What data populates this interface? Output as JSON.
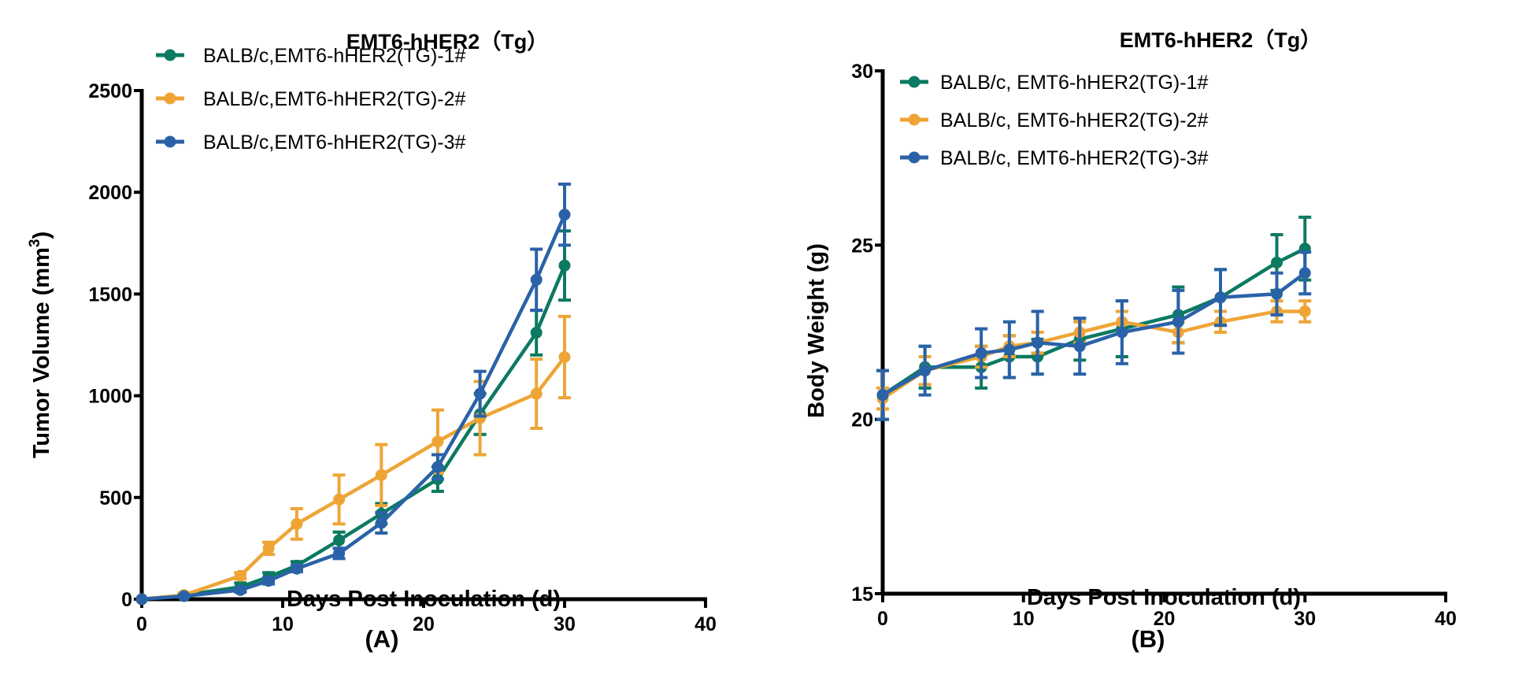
{
  "colors": {
    "series1": "#0b7a60",
    "series2": "#eea536",
    "series3": "#2a62a8",
    "axis": "#000000"
  },
  "chart_data": [
    {
      "type": "line",
      "panel_label": "(A)",
      "title": "EMT6-hHER2（Tg）",
      "xlabel": "Days Post Inoculation (d)",
      "ylabel": "Tumor Volume (mm",
      "ylabel_sup": "3",
      "ylabel_end": ")",
      "xlim": [
        0,
        40
      ],
      "ylim": [
        0,
        2500
      ],
      "xticks": [
        0,
        10,
        20,
        30,
        40
      ],
      "yticks": [
        0,
        500,
        1000,
        1500,
        2000,
        2500
      ],
      "grid": false,
      "legend_position": "top-left",
      "x": [
        0,
        3,
        7,
        9,
        11,
        14,
        17,
        21,
        24,
        28,
        30
      ],
      "series": [
        {
          "name": "BALB/c,EMT6-hHER2(TG)-1#",
          "values": [
            0,
            20,
            60,
            110,
            165,
            290,
            420,
            590,
            910,
            1310,
            1640
          ],
          "error": [
            0,
            10,
            20,
            20,
            20,
            40,
            50,
            60,
            100,
            110,
            170
          ]
        },
        {
          "name": "BALB/c,EMT6-hHER2(TG)-2#",
          "values": [
            0,
            20,
            115,
            250,
            370,
            490,
            610,
            775,
            890,
            1010,
            1190
          ],
          "error": [
            0,
            10,
            15,
            30,
            75,
            120,
            150,
            155,
            180,
            170,
            200
          ]
        },
        {
          "name": "BALB/c,EMT6-hHER2(TG)-3#",
          "values": [
            0,
            15,
            45,
            90,
            150,
            225,
            375,
            650,
            1010,
            1570,
            1890
          ],
          "error": [
            0,
            5,
            10,
            15,
            15,
            25,
            50,
            60,
            110,
            150,
            150
          ]
        }
      ]
    },
    {
      "type": "line",
      "panel_label": "(B)",
      "title": "EMT6-hHER2（Tg）",
      "xlabel": "Days Post Inoculation (d)",
      "ylabel": "Body Weight (g)",
      "xlim": [
        0,
        40
      ],
      "ylim": [
        15,
        30
      ],
      "xticks": [
        0,
        10,
        20,
        30,
        40
      ],
      "yticks": [
        15,
        20,
        25,
        30
      ],
      "grid": false,
      "legend_position": "top-left",
      "x": [
        0,
        3,
        7,
        9,
        11,
        14,
        17,
        21,
        24,
        28,
        30
      ],
      "series": [
        {
          "name": "BALB/c,  EMT6-hHER2(TG)-1#",
          "values": [
            20.7,
            21.5,
            21.5,
            21.8,
            21.8,
            22.3,
            22.6,
            23.0,
            23.5,
            24.5,
            24.9
          ],
          "error": [
            0.7,
            0.6,
            0.6,
            0.6,
            0.5,
            0.6,
            0.8,
            0.8,
            0.8,
            0.8,
            0.9
          ]
        },
        {
          "name": "BALB/c,  EMT6-hHER2(TG)-2#",
          "values": [
            20.6,
            21.4,
            21.8,
            22.1,
            22.2,
            22.5,
            22.8,
            22.5,
            22.8,
            23.1,
            23.1
          ],
          "error": [
            0.3,
            0.4,
            0.3,
            0.3,
            0.3,
            0.3,
            0.3,
            0.3,
            0.3,
            0.3,
            0.3
          ]
        },
        {
          "name": "BALB/c,  EMT6-hHER2(TG)-3#",
          "values": [
            20.7,
            21.4,
            21.9,
            22.0,
            22.2,
            22.1,
            22.5,
            22.8,
            23.5,
            23.6,
            24.2
          ],
          "error": [
            0.7,
            0.7,
            0.7,
            0.8,
            0.9,
            0.8,
            0.9,
            0.9,
            0.8,
            0.6,
            0.6
          ]
        }
      ]
    }
  ]
}
